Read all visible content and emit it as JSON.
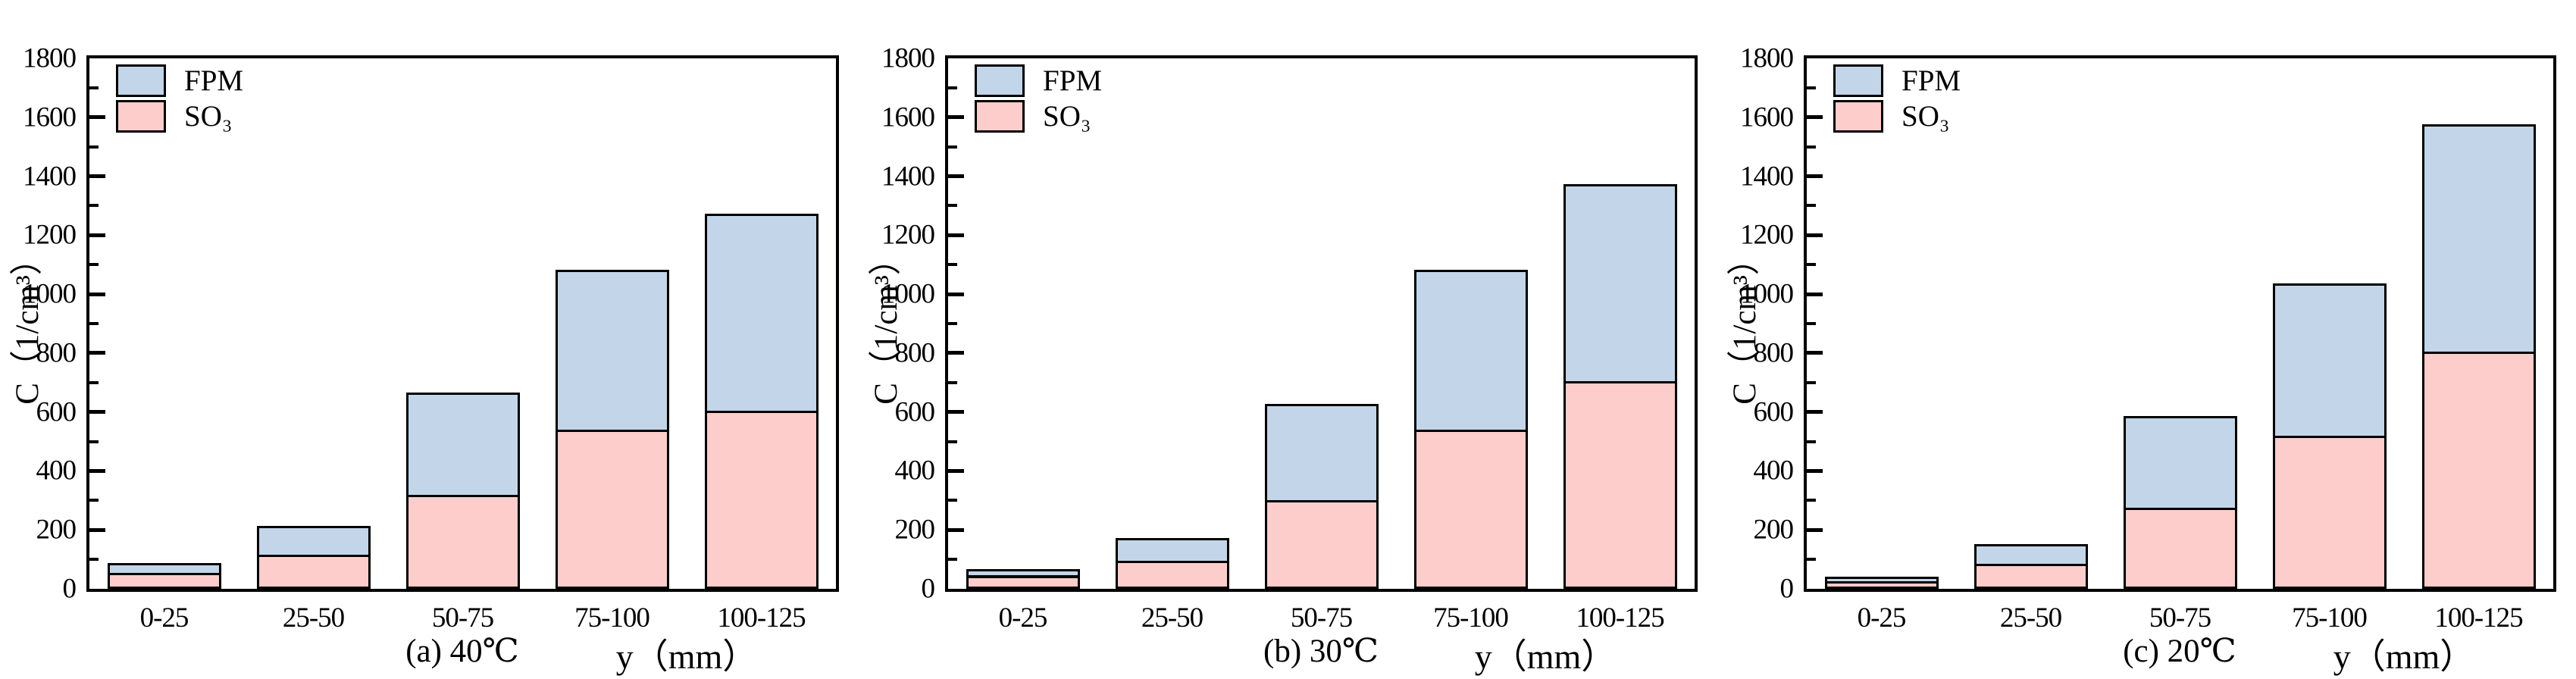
{
  "figure": {
    "background": "#ffffff",
    "axis_color": "#000000",
    "legend": [
      {
        "key": "fpm",
        "label": "FPM",
        "color": "#C3D5E8"
      },
      {
        "key": "so3",
        "label": "SO₃",
        "color": "#FDCDCB"
      }
    ],
    "yticks": [
      0,
      200,
      400,
      600,
      800,
      1000,
      1200,
      1400,
      1600,
      1800
    ]
  },
  "chart_data": [
    {
      "type": "bar",
      "stacked": true,
      "title": "(a) 40℃",
      "xlabel": "y（mm）",
      "ylabel": "C（1/cm³）",
      "ylim": [
        0,
        1800
      ],
      "grid": false,
      "legend_position": "top-left",
      "categories": [
        "0-25",
        "25-50",
        "50-75",
        "75-100",
        "100-125"
      ],
      "series": [
        {
          "name": "SO₃",
          "color": "#FDCDCB",
          "values": [
            55,
            115,
            320,
            540,
            605
          ]
        },
        {
          "name": "FPM",
          "color": "#C3D5E8",
          "values": [
            40,
            105,
            355,
            550,
            675
          ]
        }
      ],
      "totals": [
        95,
        220,
        675,
        1090,
        1280
      ]
    },
    {
      "type": "bar",
      "stacked": true,
      "title": "(b) 30℃",
      "xlabel": "y（mm）",
      "ylabel": "C（1/cm³）",
      "ylim": [
        0,
        1800
      ],
      "grid": false,
      "legend_position": "top-left",
      "categories": [
        "0-25",
        "25-50",
        "50-75",
        "75-100",
        "100-125"
      ],
      "series": [
        {
          "name": "SO₃",
          "color": "#FDCDCB",
          "values": [
            45,
            95,
            300,
            540,
            705
          ]
        },
        {
          "name": "FPM",
          "color": "#C3D5E8",
          "values": [
            30,
            85,
            335,
            550,
            675
          ]
        }
      ],
      "totals": [
        75,
        180,
        635,
        1090,
        1380
      ]
    },
    {
      "type": "bar",
      "stacked": true,
      "title": "(c) 20℃",
      "xlabel": "y（mm）",
      "ylabel": "C（1/cm³）",
      "ylim": [
        0,
        1800
      ],
      "grid": false,
      "legend_position": "top-left",
      "categories": [
        "0-25",
        "25-50",
        "50-75",
        "75-100",
        "100-125"
      ],
      "series": [
        {
          "name": "SO₃",
          "color": "#FDCDCB",
          "values": [
            25,
            85,
            275,
            520,
            805
          ]
        },
        {
          "name": "FPM",
          "color": "#C3D5E8",
          "values": [
            25,
            75,
            320,
            525,
            780
          ]
        }
      ],
      "totals": [
        50,
        160,
        595,
        1045,
        1585
      ]
    }
  ]
}
